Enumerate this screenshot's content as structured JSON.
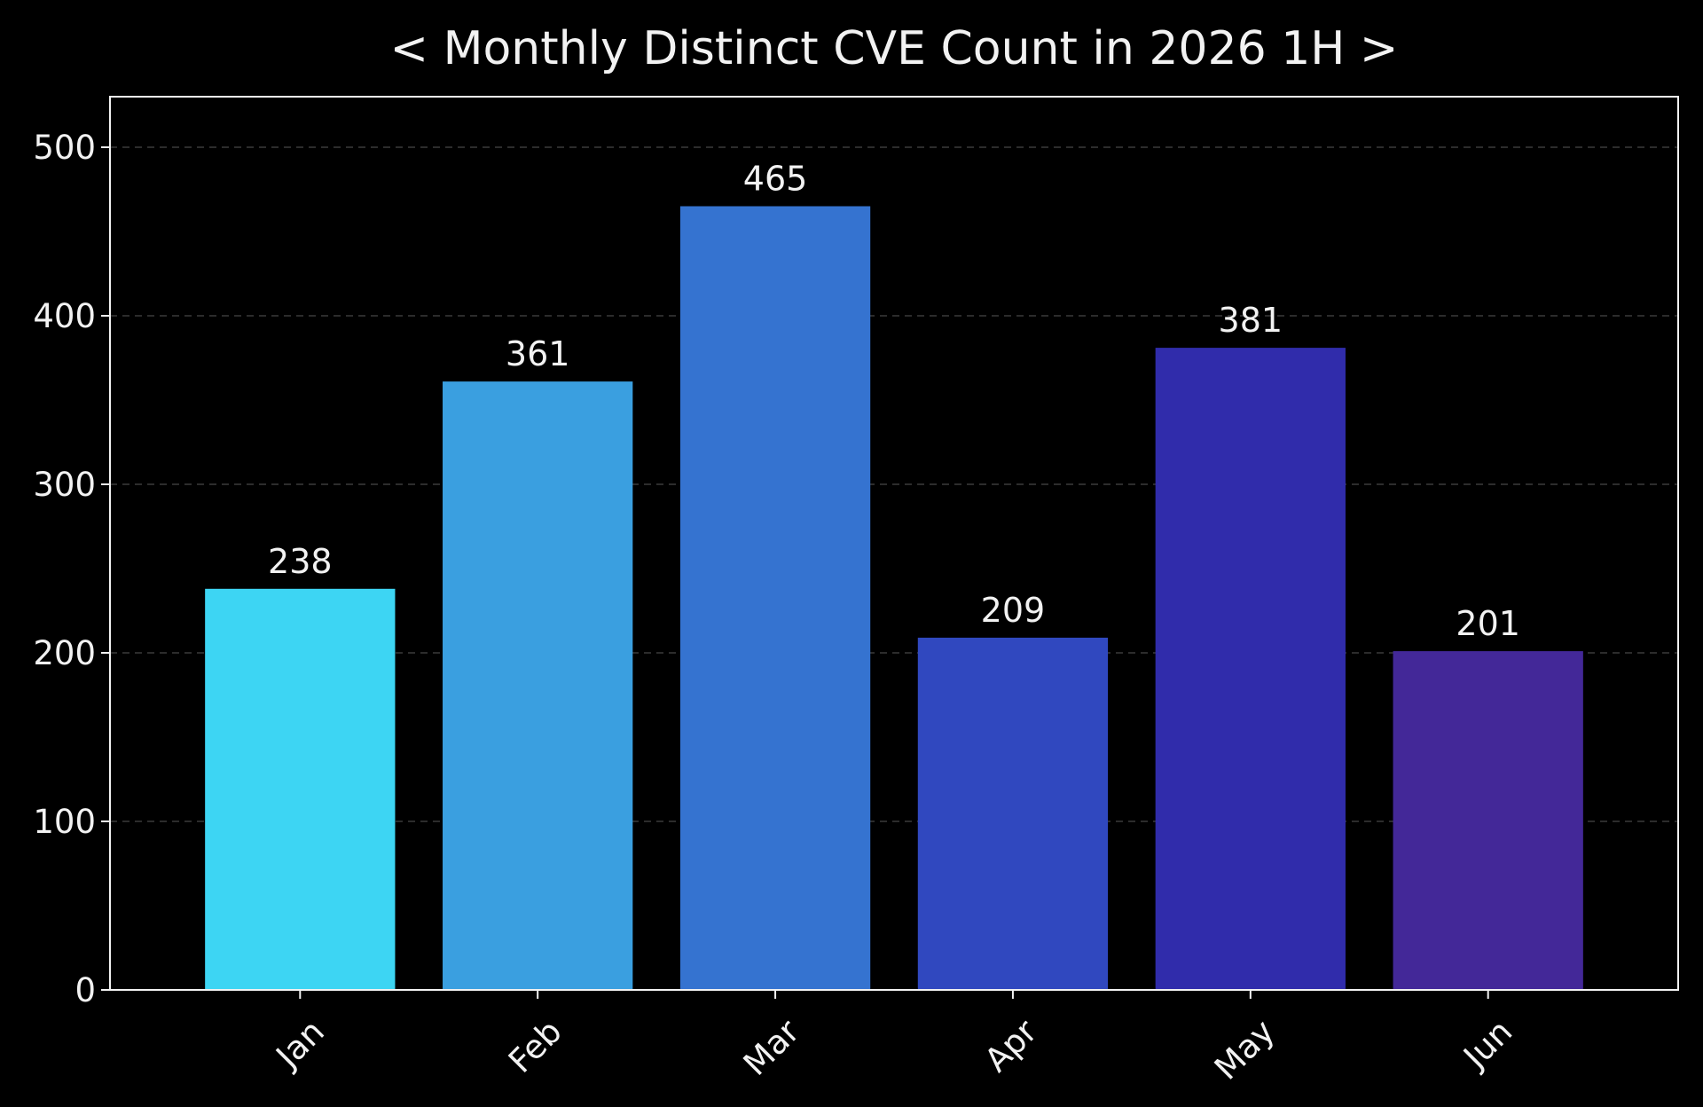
{
  "chart_data": {
    "type": "bar",
    "title": "< Monthly Distinct CVE Count in 2026 1H >",
    "xlabel": "",
    "ylabel": "",
    "categories": [
      "Jan",
      "Feb",
      "Mar",
      "Apr",
      "May",
      "Jun"
    ],
    "values": [
      238,
      361,
      465,
      209,
      381,
      201
    ],
    "bar_colors": [
      "#3dd5f3",
      "#3a9fe0",
      "#3573d0",
      "#3048bf",
      "#302cab",
      "#432898"
    ],
    "ylim": [
      0,
      530
    ],
    "yticks": [
      0,
      100,
      200,
      300,
      400,
      500
    ],
    "grid": "horizontal dashed",
    "background": "#000000",
    "text_color": "#f2f2f2",
    "x_tick_rotation": 45
  }
}
